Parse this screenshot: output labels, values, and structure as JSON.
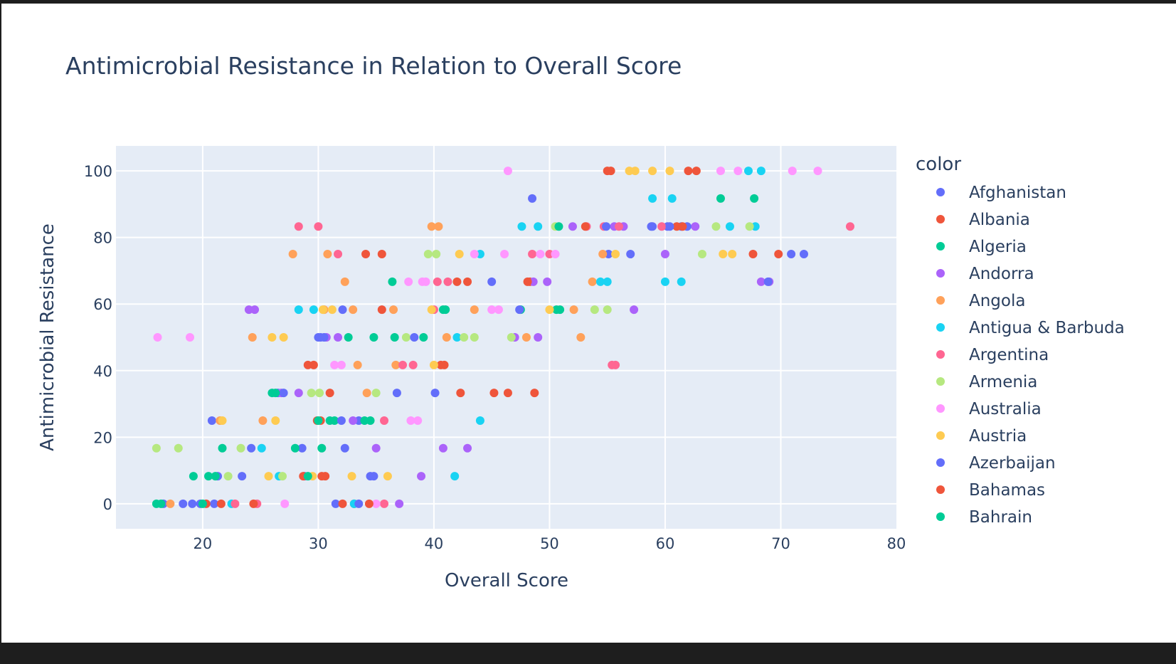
{
  "chart_data": {
    "type": "scatter",
    "title": "Antimicrobial Resistance in Relation to Overall Score",
    "xlabel": "Overall Score",
    "ylabel": "Antimicrobial Resistance",
    "xlim": [
      12.5,
      80
    ],
    "ylim": [
      -7.5,
      107.5
    ],
    "xticks": [
      20,
      30,
      40,
      50,
      60,
      70,
      80
    ],
    "yticks": [
      0,
      20,
      40,
      60,
      80,
      100
    ],
    "grid": true,
    "legend_title": "color",
    "legend_position": "right",
    "series": [
      {
        "name": "Afghanistan",
        "color": "#636efa",
        "points": [
          [
            16.6,
            0
          ],
          [
            18.3,
            0
          ],
          [
            19.1,
            0
          ],
          [
            20.8,
            25
          ],
          [
            21.3,
            8.3
          ],
          [
            24.2,
            16.7
          ],
          [
            26.5,
            33.3
          ],
          [
            28.6,
            16.7
          ],
          [
            30.2,
            50
          ],
          [
            32.1,
            58.3
          ],
          [
            32.3,
            16.7
          ],
          [
            33.5,
            25
          ],
          [
            34.5,
            8.3
          ],
          [
            36.8,
            33.3
          ],
          [
            40.1,
            33.3
          ],
          [
            45.0,
            66.7
          ],
          [
            48.5,
            91.7
          ],
          [
            55.1,
            75
          ],
          [
            57.0,
            75
          ],
          [
            58.8,
            83.3
          ],
          [
            60.2,
            83.3
          ],
          [
            61.4,
            83.3
          ],
          [
            70.9,
            75
          ],
          [
            72.0,
            75
          ]
        ]
      },
      {
        "name": "Albania",
        "color": "#ef553b",
        "points": [
          [
            29.1,
            41.7
          ],
          [
            30.2,
            25
          ],
          [
            30.6,
            8.3
          ],
          [
            31.0,
            33.3
          ],
          [
            33.1,
            0
          ],
          [
            34.1,
            75
          ],
          [
            35.5,
            75
          ],
          [
            35.5,
            58.3
          ],
          [
            40.6,
            41.7
          ],
          [
            42.3,
            33.3
          ],
          [
            42.9,
            66.7
          ],
          [
            45.2,
            33.3
          ],
          [
            46.4,
            33.3
          ],
          [
            48.3,
            66.7
          ],
          [
            48.7,
            33.3
          ],
          [
            55.3,
            100
          ],
          [
            61.0,
            83.3
          ],
          [
            62.0,
            100
          ],
          [
            62.7,
            100
          ],
          [
            67.6,
            75
          ],
          [
            69.8,
            75
          ]
        ]
      },
      {
        "name": "Algeria",
        "color": "#00cc96",
        "points": [
          [
            16.0,
            0
          ],
          [
            19.2,
            8.3
          ],
          [
            20.5,
            8.3
          ],
          [
            21.7,
            16.7
          ],
          [
            26.0,
            33.3
          ],
          [
            28.0,
            16.7
          ],
          [
            30.3,
            16.7
          ],
          [
            31.4,
            25
          ],
          [
            32.6,
            50
          ],
          [
            34.0,
            25
          ],
          [
            34.8,
            50
          ],
          [
            36.4,
            66.7
          ],
          [
            39.1,
            50
          ],
          [
            41.0,
            58.3
          ],
          [
            47.5,
            58.3
          ],
          [
            50.6,
            58.3
          ],
          [
            64.8,
            91.7
          ],
          [
            67.7,
            91.7
          ]
        ]
      },
      {
        "name": "Andorra",
        "color": "#ab63fa",
        "points": [
          [
            24.0,
            58.3
          ],
          [
            24.5,
            58.3
          ],
          [
            26.8,
            33.3
          ],
          [
            28.3,
            33.3
          ],
          [
            30.7,
            50
          ],
          [
            31.7,
            50
          ],
          [
            33.0,
            25
          ],
          [
            35.0,
            16.7
          ],
          [
            37.0,
            0
          ],
          [
            38.9,
            8.3
          ],
          [
            40.8,
            16.7
          ],
          [
            42.9,
            16.7
          ],
          [
            47.0,
            50
          ],
          [
            48.6,
            66.7
          ],
          [
            49.0,
            50
          ],
          [
            49.8,
            66.7
          ],
          [
            52.0,
            83.3
          ],
          [
            55.6,
            83.3
          ],
          [
            56.4,
            83.3
          ],
          [
            57.3,
            58.3
          ],
          [
            60.0,
            75
          ],
          [
            62.6,
            83.3
          ],
          [
            68.3,
            66.7
          ],
          [
            69.0,
            66.7
          ]
        ]
      },
      {
        "name": "Angola",
        "color": "#ffa15a",
        "points": [
          [
            17.2,
            0
          ],
          [
            21.5,
            25
          ],
          [
            24.3,
            50
          ],
          [
            25.2,
            25
          ],
          [
            27.8,
            75
          ],
          [
            30.5,
            58.3
          ],
          [
            30.8,
            75
          ],
          [
            32.3,
            66.7
          ],
          [
            33.0,
            58.3
          ],
          [
            33.4,
            41.7
          ],
          [
            34.2,
            33.3
          ],
          [
            36.5,
            58.3
          ],
          [
            36.7,
            41.7
          ],
          [
            39.8,
            83.3
          ],
          [
            40.4,
            83.3
          ],
          [
            41.1,
            50
          ],
          [
            43.5,
            58.3
          ],
          [
            48.0,
            50
          ],
          [
            52.1,
            58.3
          ],
          [
            52.7,
            50
          ],
          [
            53.7,
            66.7
          ],
          [
            54.6,
            75
          ]
        ]
      },
      {
        "name": "Antigua & Barbuda",
        "color": "#19d3f3",
        "points": [
          [
            22.5,
            0
          ],
          [
            25.1,
            16.7
          ],
          [
            26.6,
            8.3
          ],
          [
            28.3,
            58.3
          ],
          [
            29.6,
            58.3
          ],
          [
            33.1,
            0
          ],
          [
            42.0,
            50
          ],
          [
            41.8,
            8.3
          ],
          [
            44.0,
            75
          ],
          [
            44.0,
            25
          ],
          [
            47.6,
            83.3
          ],
          [
            49.0,
            83.3
          ],
          [
            54.4,
            66.7
          ],
          [
            55.0,
            66.7
          ],
          [
            58.9,
            91.7
          ],
          [
            60.6,
            91.7
          ],
          [
            60.0,
            66.7
          ],
          [
            61.4,
            66.7
          ],
          [
            65.6,
            83.3
          ],
          [
            67.2,
            100
          ],
          [
            68.3,
            100
          ],
          [
            67.8,
            83.3
          ]
        ]
      },
      {
        "name": "Argentina",
        "color": "#ff6692",
        "points": [
          [
            22.8,
            0
          ],
          [
            24.7,
            0
          ],
          [
            28.3,
            83.3
          ],
          [
            30.0,
            83.3
          ],
          [
            31.7,
            75
          ],
          [
            35.7,
            25
          ],
          [
            35.7,
            0
          ],
          [
            37.3,
            41.7
          ],
          [
            38.2,
            41.7
          ],
          [
            40.0,
            58.3
          ],
          [
            40.3,
            66.7
          ],
          [
            41.2,
            66.7
          ],
          [
            48.5,
            75
          ],
          [
            50.0,
            75
          ],
          [
            53.2,
            83.3
          ],
          [
            54.7,
            83.3
          ],
          [
            55.4,
            41.7
          ],
          [
            55.7,
            41.7
          ],
          [
            56.0,
            83.3
          ],
          [
            59.7,
            83.3
          ],
          [
            76.0,
            83.3
          ]
        ]
      },
      {
        "name": "Armenia",
        "color": "#b6e880",
        "points": [
          [
            16.0,
            16.7
          ],
          [
            17.9,
            16.7
          ],
          [
            22.2,
            8.3
          ],
          [
            23.3,
            16.7
          ],
          [
            26.9,
            8.3
          ],
          [
            29.4,
            33.3
          ],
          [
            30.1,
            33.3
          ],
          [
            35.0,
            33.3
          ],
          [
            37.6,
            50
          ],
          [
            39.5,
            75
          ],
          [
            40.2,
            75
          ],
          [
            42.6,
            50
          ],
          [
            43.5,
            50
          ],
          [
            46.7,
            50
          ],
          [
            50.5,
            83.3
          ],
          [
            53.9,
            58.3
          ],
          [
            55.0,
            58.3
          ],
          [
            63.2,
            75
          ],
          [
            64.4,
            83.3
          ],
          [
            67.3,
            83.3
          ]
        ]
      },
      {
        "name": "Australia",
        "color": "#ff97ff",
        "points": [
          [
            16.1,
            50
          ],
          [
            18.9,
            50
          ],
          [
            27.1,
            0
          ],
          [
            31.4,
            41.7
          ],
          [
            32.0,
            41.7
          ],
          [
            35.0,
            0
          ],
          [
            37.8,
            66.7
          ],
          [
            39.0,
            66.7
          ],
          [
            39.3,
            66.7
          ],
          [
            38.0,
            25
          ],
          [
            38.6,
            25
          ],
          [
            43.5,
            75
          ],
          [
            45.0,
            58.3
          ],
          [
            45.6,
            58.3
          ],
          [
            46.4,
            100
          ],
          [
            46.1,
            75
          ],
          [
            49.2,
            75
          ],
          [
            50.5,
            75
          ],
          [
            64.8,
            100
          ],
          [
            66.3,
            100
          ],
          [
            71.0,
            100
          ],
          [
            73.2,
            100
          ]
        ]
      },
      {
        "name": "Austria",
        "color": "#fecb52",
        "points": [
          [
            21.7,
            25
          ],
          [
            25.7,
            8.3
          ],
          [
            26.0,
            50
          ],
          [
            26.3,
            25
          ],
          [
            27.0,
            50
          ],
          [
            29.5,
            8.3
          ],
          [
            30.4,
            58.3
          ],
          [
            31.2,
            58.3
          ],
          [
            32.9,
            8.3
          ],
          [
            36.0,
            8.3
          ],
          [
            39.8,
            58.3
          ],
          [
            40.0,
            41.7
          ],
          [
            42.2,
            75
          ],
          [
            50.0,
            58.3
          ],
          [
            55.7,
            75
          ],
          [
            56.9,
            100
          ],
          [
            57.4,
            100
          ],
          [
            58.9,
            100
          ],
          [
            60.4,
            100
          ],
          [
            65.0,
            75
          ],
          [
            65.8,
            75
          ]
        ]
      },
      {
        "name": "Azerbaijan",
        "color": "#636efa",
        "points": [
          [
            19.8,
            0
          ],
          [
            21.0,
            0
          ],
          [
            23.4,
            8.3
          ],
          [
            27.0,
            33.3
          ],
          [
            28.8,
            8.3
          ],
          [
            30.0,
            50
          ],
          [
            30.5,
            50
          ],
          [
            31.5,
            0
          ],
          [
            32.0,
            25
          ],
          [
            33.5,
            0
          ],
          [
            34.8,
            8.3
          ],
          [
            38.3,
            50
          ],
          [
            47.4,
            58.3
          ],
          [
            54.9,
            83.3
          ],
          [
            58.9,
            83.3
          ],
          [
            60.4,
            83.3
          ],
          [
            61.9,
            83.3
          ],
          [
            68.9,
            66.7
          ]
        ]
      },
      {
        "name": "Bahamas",
        "color": "#ef553b",
        "points": [
          [
            20.3,
            0
          ],
          [
            21.6,
            0
          ],
          [
            24.4,
            0
          ],
          [
            28.7,
            8.3
          ],
          [
            29.6,
            41.7
          ],
          [
            29.9,
            25
          ],
          [
            30.3,
            8.3
          ],
          [
            32.1,
            0
          ],
          [
            34.4,
            0
          ],
          [
            40.9,
            41.7
          ],
          [
            42.0,
            66.7
          ],
          [
            48.1,
            66.7
          ],
          [
            53.1,
            83.3
          ],
          [
            55.0,
            100
          ],
          [
            61.5,
            83.3
          ]
        ]
      },
      {
        "name": "Bahrain",
        "color": "#00cc96",
        "points": [
          [
            16.4,
            0
          ],
          [
            20.0,
            0
          ],
          [
            21.1,
            8.3
          ],
          [
            26.3,
            33.3
          ],
          [
            29.1,
            8.3
          ],
          [
            30.0,
            25
          ],
          [
            31.0,
            25
          ],
          [
            34.5,
            25
          ],
          [
            36.6,
            50
          ],
          [
            40.8,
            58.3
          ],
          [
            50.8,
            83.3
          ],
          [
            50.9,
            58.3
          ]
        ]
      }
    ]
  }
}
